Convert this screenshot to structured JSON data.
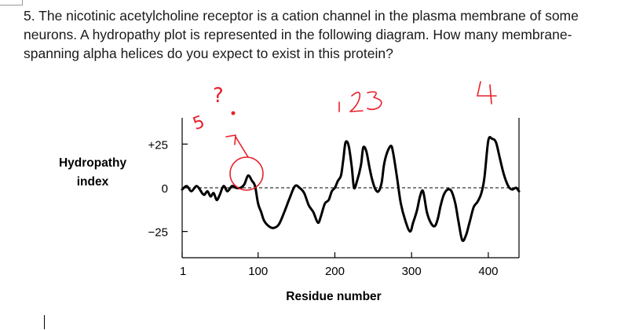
{
  "question": {
    "text": "5. The nicotinic acetylcholine receptor is a cation channel in the plasma membrane of some neurons. A hydropathy plot is represented in the following diagram. How many membrane-spanning alpha helices do you expect to exist in this protein?"
  },
  "annotations": {
    "question_mark": "?",
    "five": "5",
    "numbers": [
      "1",
      "2",
      "3",
      "4"
    ]
  },
  "chart_data": {
    "type": "line",
    "title": "",
    "xlabel": "Residue number",
    "ylabel_lines": [
      "Hydropathy",
      "index"
    ],
    "xlim": [
      1,
      440
    ],
    "ylim": [
      -40,
      40
    ],
    "x_ticks": [
      1,
      100,
      200,
      300,
      400
    ],
    "x_tick_labels": [
      "1",
      "100",
      "200",
      "300",
      "400"
    ],
    "y_ticks": [
      25,
      0,
      -25
    ],
    "y_tick_labels": [
      "+25",
      "0",
      "−25"
    ],
    "zero_line": "dashed",
    "grid": false,
    "series": [
      {
        "x": [
          1,
          7,
          13,
          20,
          27,
          30,
          34,
          38,
          42,
          46,
          50,
          55,
          60,
          66,
          71,
          77,
          82,
          87,
          92,
          96,
          100,
          104,
          108,
          114,
          120,
          127,
          134,
          141,
          148,
          154,
          160,
          166,
          172,
          178,
          182,
          187,
          192,
          196,
          200,
          204,
          208,
          211,
          214,
          218,
          222,
          225,
          229,
          234,
          237,
          241,
          245,
          249,
          253,
          257,
          261,
          264,
          268,
          273,
          276,
          281,
          286,
          292,
          298,
          302,
          307,
          311,
          315,
          320,
          325,
          330,
          334,
          338,
          342,
          347,
          352,
          357,
          361,
          366,
          371,
          376,
          381,
          386,
          391,
          395,
          400,
          405,
          410,
          415,
          420,
          426,
          431,
          436,
          440
        ],
        "y": [
          -1,
          1,
          -2,
          1,
          -3,
          -4,
          -2,
          -5,
          -3,
          -7,
          -4,
          1,
          -2,
          1,
          0,
          0,
          2,
          7,
          4,
          1,
          -9,
          -14,
          -19,
          -22,
          -23,
          -21,
          -14,
          -6,
          1,
          0,
          -3,
          -10,
          -14,
          -20,
          -16,
          -9,
          -7,
          -2,
          0,
          4,
          7,
          16,
          26,
          24,
          12,
          0,
          4,
          13,
          23,
          21,
          12,
          4,
          -1,
          -2,
          3,
          13,
          20,
          24,
          20,
          6,
          -9,
          -19,
          -25,
          -20,
          -13,
          -5,
          -2,
          -14,
          -20,
          -22,
          -18,
          -10,
          -4,
          -1,
          -2,
          -9,
          -19,
          -30,
          -27,
          -19,
          -11,
          -8,
          -3,
          6,
          27,
          28,
          26,
          17,
          8,
          1,
          -1,
          0,
          -2
        ]
      }
    ]
  }
}
